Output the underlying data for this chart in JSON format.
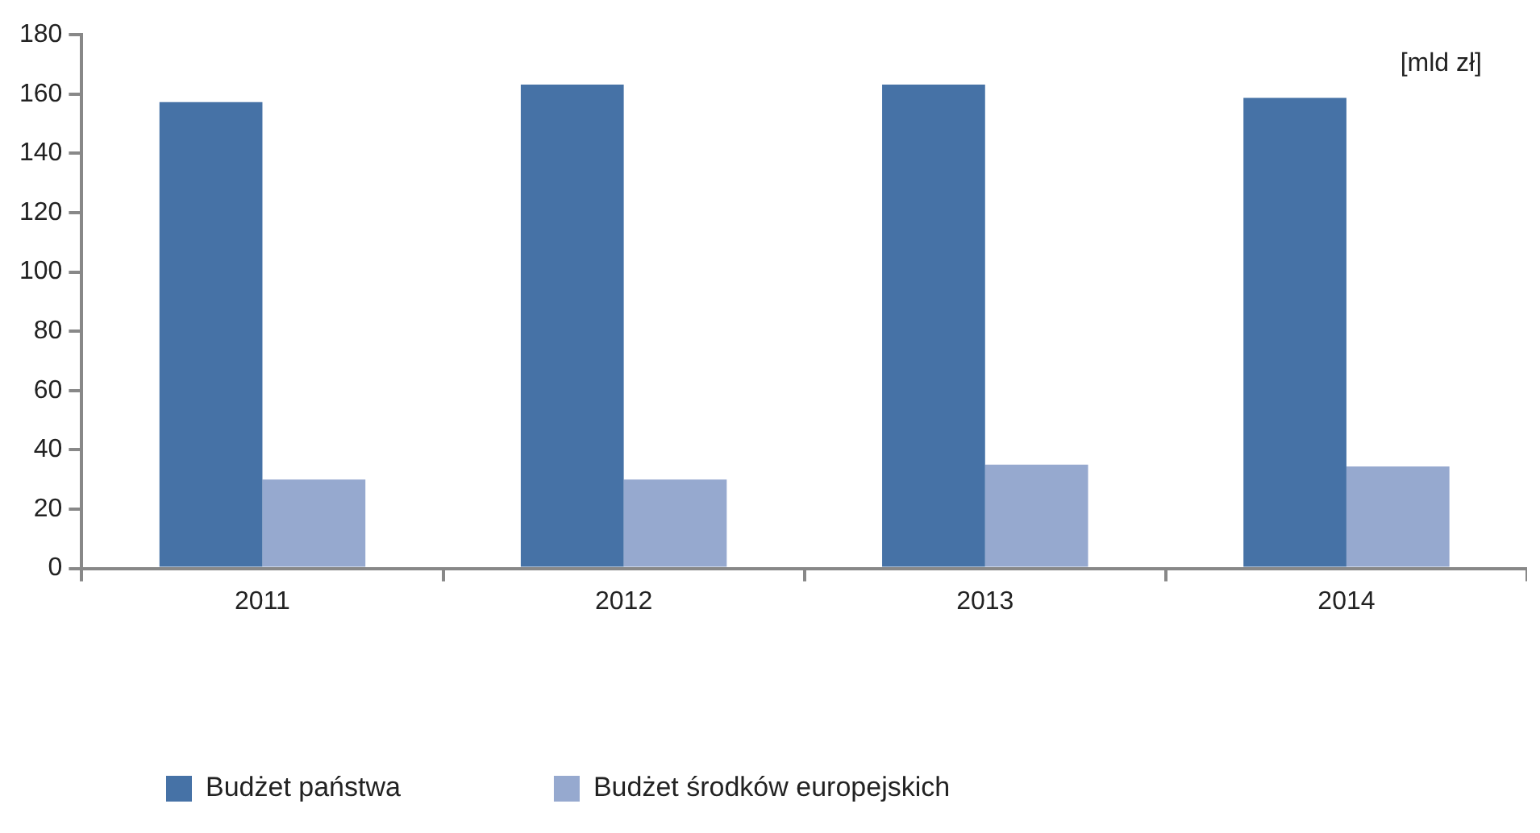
{
  "chart_data": {
    "type": "bar",
    "categories": [
      "2011",
      "2012",
      "2013",
      "2014"
    ],
    "series": [
      {
        "name": "Budżet państwa",
        "color": "#4672a6",
        "values": [
          157.3,
          163.2,
          163.2,
          158.7
        ]
      },
      {
        "name": "Budżet środków europejskich",
        "color": "#96a9cf",
        "values": [
          30,
          30,
          35,
          34.4
        ]
      }
    ],
    "ylim": [
      0,
      180
    ],
    "yticks": [
      0,
      20,
      40,
      60,
      80,
      100,
      120,
      140,
      160,
      180
    ],
    "grid": false,
    "legend": "bottom",
    "annotations": [
      "[mld zł]"
    ]
  }
}
